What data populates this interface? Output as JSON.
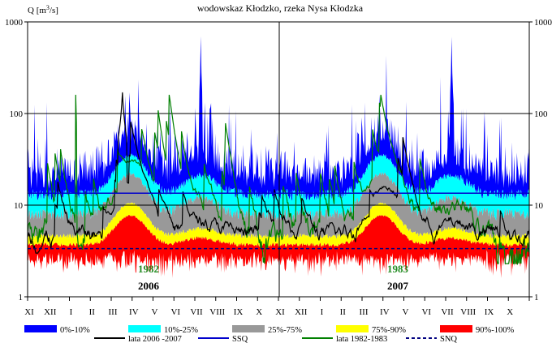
{
  "chart_data": {
    "type": "area",
    "title": "wodowskaz Kłodzko, rzeka Nysa Kłodzka",
    "ylabel_html": "Q [m<tspan baseline-shift='super' font-size='8'>3</tspan>/s]",
    "ylabel": "Q [m3/s]",
    "yscale": "log",
    "ylim": [
      1,
      1000
    ],
    "yticks": [
      "1",
      "10",
      "100",
      "1000"
    ],
    "months": [
      "XI",
      "XII",
      "I",
      "II",
      "III",
      "IV",
      "V",
      "VI",
      "VII",
      "VIII",
      "IX",
      "X",
      "XI",
      "XII",
      "I",
      "II",
      "III",
      "IV",
      "V",
      "VI",
      "VII",
      "VIII",
      "IX",
      "X"
    ],
    "grid": "major-y",
    "legend_position": "bottom",
    "reference_lines": {
      "SSQ": 13.5,
      "SNQ": 3.35
    },
    "year_labels": [
      {
        "top": "1982",
        "bottom": "2006"
      },
      {
        "top": "1983",
        "bottom": "2007"
      }
    ],
    "series": [
      {
        "name": "0%-10%",
        "color": "#0000ff"
      },
      {
        "name": "10%-25%",
        "color": "#00ffff"
      },
      {
        "name": "25%-75%",
        "color": "#999999"
      },
      {
        "name": "75%-90%",
        "color": "#ffff00"
      },
      {
        "name": "90%-100%",
        "color": "#ff0000"
      },
      {
        "name": "lata 2006 -2007",
        "color": "#000000"
      },
      {
        "name": "SSQ",
        "color": "#0000cc"
      },
      {
        "name": "lata 1982-1983",
        "color": "#008000"
      },
      {
        "name": "SNQ",
        "color": "#000080"
      }
    ]
  }
}
